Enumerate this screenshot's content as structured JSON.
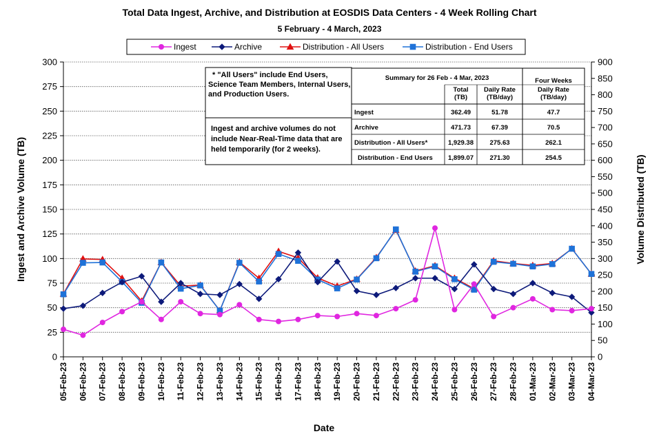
{
  "title": "Total Data Ingest, Archive, and  Distribution at EOSDIS Data Centers - 4 Week Rolling Chart",
  "subtitle": "5 February  - 4 March,  2023",
  "colors": {
    "ingest": "#e026e0",
    "archive": "#0d1a7a",
    "distribution_all": "#e01010",
    "distribution_end": "#1f72d8"
  },
  "notes": {
    "note1": [
      "* \"All Users\" include End Users,",
      "Science Team Members,  Internal Users,",
      "and Production Users."
    ],
    "note2": [
      "Ingest and archive volumes do not",
      "include Near-Real-Time data that are",
      "held temporarily (for 2 weeks)."
    ]
  },
  "summary": {
    "header": "Summary for 26 Feb  - 4 Mar, 2023",
    "four_weeks_header": "Four Weeks",
    "col_total": [
      "Total",
      "(TB)"
    ],
    "col_daily": [
      "Daily Rate",
      "(TB/day)"
    ],
    "col_four": [
      "Daily Rate",
      "(TB/day)"
    ],
    "rows": [
      {
        "label": "Ingest",
        "total": "362.49",
        "daily": "51.78",
        "four": "47.7"
      },
      {
        "label": "Archive",
        "total": "471.73",
        "daily": "67.39",
        "four": "70.5"
      },
      {
        "label": "Distribution - All Users*",
        "total": "1,929.38",
        "daily": "275.63",
        "four": "262.1"
      },
      {
        "label": "Distribution - End Users",
        "total": "1,899.07",
        "daily": "271.30",
        "four": "254.5"
      }
    ]
  },
  "chart_data": {
    "type": "line",
    "title": "Total Data Ingest, Archive, and  Distribution at EOSDIS Data Centers - 4 Week Rolling Chart",
    "subtitle": "5 February  - 4 March,  2023",
    "xlabel": "Date",
    "ylabel_left": "Ingest and Archive Volume (TB)",
    "ylabel_right": "Volume Distributed (TB)",
    "ylim_left": [
      0,
      300
    ],
    "ylim_right": [
      0,
      900
    ],
    "yticks_left": [
      0,
      25,
      50,
      75,
      100,
      125,
      150,
      175,
      200,
      225,
      250,
      275,
      300
    ],
    "yticks_right": [
      0,
      50,
      100,
      150,
      200,
      250,
      300,
      350,
      400,
      450,
      500,
      550,
      600,
      650,
      700,
      750,
      800,
      850,
      900
    ],
    "grid": true,
    "legend_position": "top",
    "categories": [
      "05-Feb-23",
      "06-Feb-23",
      "07-Feb-23",
      "08-Feb-23",
      "09-Feb-23",
      "10-Feb-23",
      "11-Feb-23",
      "12-Feb-23",
      "13-Feb-23",
      "14-Feb-23",
      "15-Feb-23",
      "16-Feb-23",
      "17-Feb-23",
      "18-Feb-23",
      "19-Feb-23",
      "20-Feb-23",
      "21-Feb-23",
      "22-Feb-23",
      "23-Feb-23",
      "24-Feb-23",
      "25-Feb-23",
      "26-Feb-23",
      "27-Feb-23",
      "28-Feb-23",
      "01-Mar-23",
      "02-Mar-23",
      "03-Mar-23",
      "04-Mar-23"
    ],
    "series": [
      {
        "name": "Ingest",
        "axis": "left",
        "marker": "circle",
        "values": [
          28,
          22,
          35,
          46,
          56,
          38,
          56,
          44,
          43,
          53,
          38,
          36,
          38,
          42,
          41,
          44,
          42,
          49,
          58,
          131,
          48,
          74,
          41,
          50,
          59,
          48,
          47,
          49
        ]
      },
      {
        "name": "Archive",
        "axis": "left",
        "marker": "diamond",
        "values": [
          49,
          52,
          65,
          76,
          82,
          56,
          75,
          64,
          63,
          74,
          59,
          79,
          106,
          76,
          97,
          67,
          63,
          70,
          80,
          80,
          69,
          94,
          69,
          64,
          75,
          65,
          61,
          45
        ]
      },
      {
        "name": "Distribution - All Users",
        "axis": "right",
        "marker": "triangle",
        "values": [
          192,
          299,
          297,
          240,
          170,
          288,
          216,
          219,
          141,
          289,
          240,
          322,
          302,
          241,
          216,
          237,
          303,
          387,
          262,
          278,
          240,
          208,
          293,
          285,
          279,
          285,
          330,
          253
        ]
      },
      {
        "name": "Distribution - End Users",
        "axis": "right",
        "marker": "square",
        "values": [
          191,
          287,
          288,
          229,
          165,
          288,
          208,
          218,
          141,
          287,
          230,
          314,
          293,
          236,
          209,
          236,
          301,
          389,
          260,
          276,
          237,
          205,
          290,
          284,
          276,
          283,
          330,
          253
        ]
      }
    ]
  }
}
